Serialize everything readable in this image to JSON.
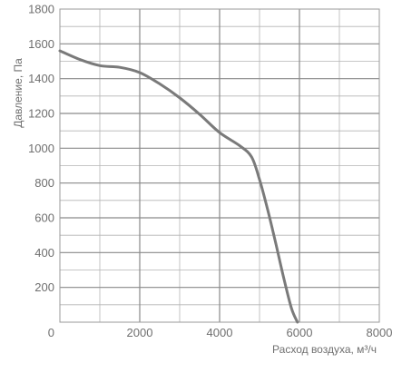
{
  "chart_data": {
    "type": "line",
    "title": "",
    "xlabel": "Расход воздуха, м³/ч",
    "ylabel": "Давление, Па",
    "xlim": [
      0,
      8000
    ],
    "ylim": [
      0,
      1800
    ],
    "x_ticks": [
      0,
      2000,
      4000,
      6000,
      8000
    ],
    "y_ticks": [
      200,
      400,
      600,
      800,
      1000,
      1200,
      1400,
      1600,
      1800
    ],
    "grid": true,
    "x_minor_step": 1000,
    "y_minor_step": 100,
    "series": [
      {
        "color": "#7a7a7a",
        "x": [
          0,
          500,
          1000,
          1500,
          2000,
          2500,
          3000,
          3500,
          4000,
          4500,
          4800,
          5000,
          5200,
          5400,
          5600,
          5800,
          5950
        ],
        "y": [
          1560,
          1510,
          1475,
          1465,
          1435,
          1370,
          1290,
          1195,
          1090,
          1015,
          950,
          820,
          650,
          460,
          260,
          80,
          0
        ]
      }
    ]
  }
}
